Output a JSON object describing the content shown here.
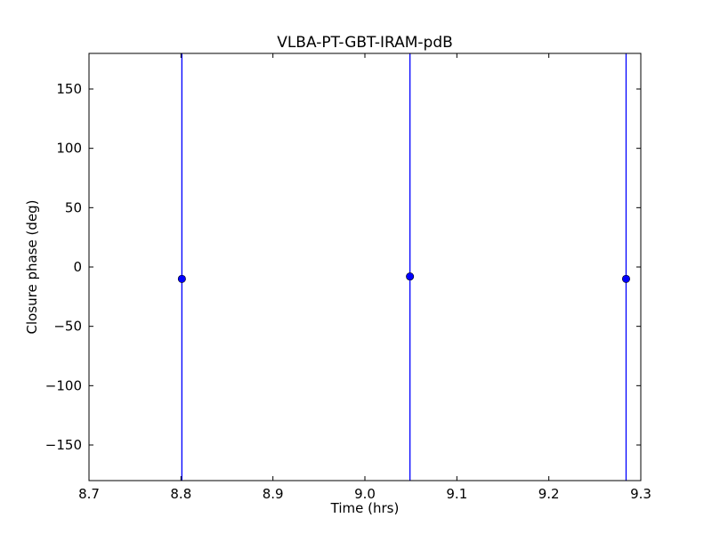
{
  "chart_data": {
    "type": "scatter",
    "title": "VLBA-PT-GBT-IRAM-pdB",
    "xlabel": "Time (hrs)",
    "ylabel": "Closure phase (deg)",
    "xlim": [
      8.7,
      9.3
    ],
    "ylim": [
      -180,
      180
    ],
    "xticks": [
      8.7,
      8.8,
      8.9,
      9.0,
      9.1,
      9.2,
      9.3
    ],
    "xtick_labels": [
      "8.7",
      "8.8",
      "8.9",
      "9.0",
      "9.1",
      "9.2",
      "9.3"
    ],
    "yticks": [
      -150,
      -100,
      -50,
      0,
      50,
      100,
      150
    ],
    "ytick_labels": [
      "−150",
      "−100",
      "−50",
      "0",
      "50",
      "100",
      "150"
    ],
    "grid": false,
    "points": [
      {
        "x": 8.801,
        "y": -10,
        "yerr_low": -180,
        "yerr_high": 180
      },
      {
        "x": 9.049,
        "y": -8,
        "yerr_low": -180,
        "yerr_high": 180
      },
      {
        "x": 9.284,
        "y": -10,
        "yerr_low": -180,
        "yerr_high": 180
      }
    ],
    "marker_color": "#0000ff",
    "errorbar_color": "#0000ff"
  }
}
